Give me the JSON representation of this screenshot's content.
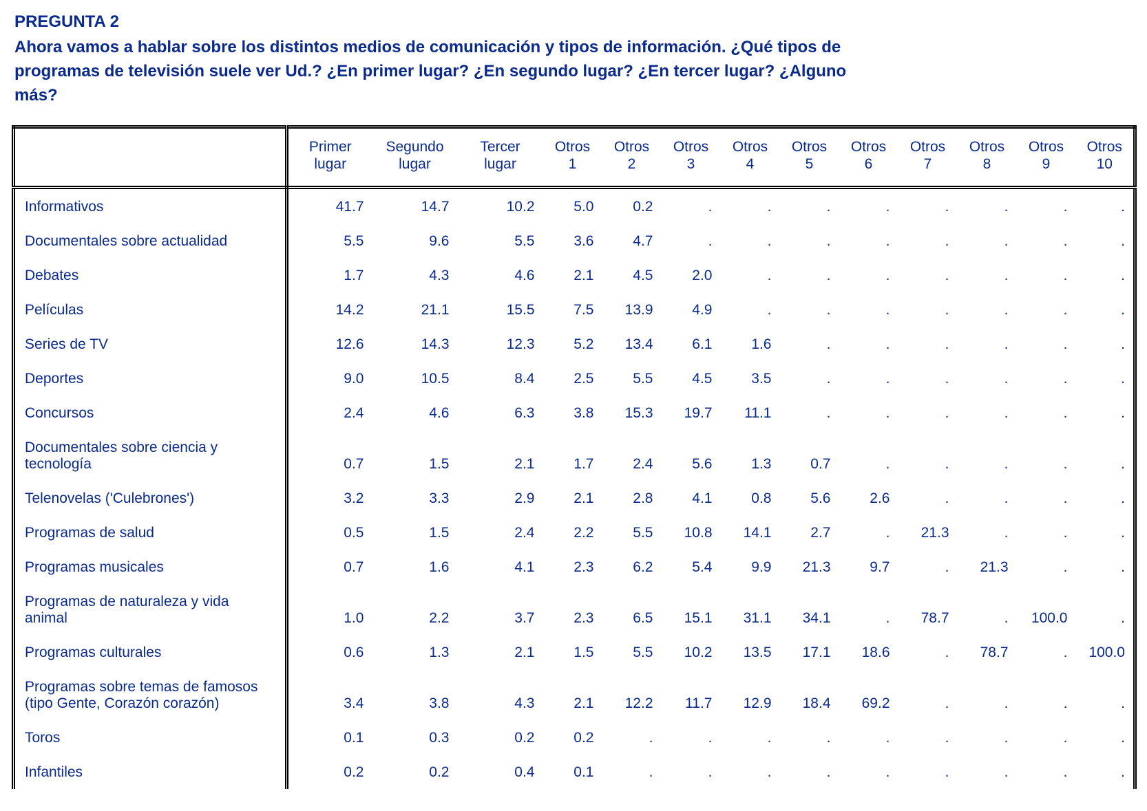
{
  "header": {
    "title": "PREGUNTA 2",
    "question": "Ahora vamos a hablar sobre los distintos medios de comunicación y tipos de información. ¿Qué tipos de programas de televisión suele ver Ud.? ¿En primer lugar? ¿En segundo lugar? ¿En tercer lugar? ¿Alguno más?"
  },
  "table": {
    "columns": [
      [
        "Primer",
        "lugar"
      ],
      [
        "Segundo",
        "lugar"
      ],
      [
        "Tercer",
        "lugar"
      ],
      [
        "Otros",
        "1"
      ],
      [
        "Otros",
        "2"
      ],
      [
        "Otros",
        "3"
      ],
      [
        "Otros",
        "4"
      ],
      [
        "Otros",
        "5"
      ],
      [
        "Otros",
        "6"
      ],
      [
        "Otros",
        "7"
      ],
      [
        "Otros",
        "8"
      ],
      [
        "Otros",
        "9"
      ],
      [
        "Otros",
        "10"
      ]
    ],
    "rows": [
      {
        "label": "Informativos",
        "cells": [
          "41.7",
          "14.7",
          "10.2",
          "5.0",
          "0.2",
          ".",
          ".",
          ".",
          ".",
          ".",
          ".",
          ".",
          "."
        ]
      },
      {
        "label": "Documentales sobre actualidad",
        "cells": [
          "5.5",
          "9.6",
          "5.5",
          "3.6",
          "4.7",
          ".",
          ".",
          ".",
          ".",
          ".",
          ".",
          ".",
          "."
        ]
      },
      {
        "label": "Debates",
        "cells": [
          "1.7",
          "4.3",
          "4.6",
          "2.1",
          "4.5",
          "2.0",
          ".",
          ".",
          ".",
          ".",
          ".",
          ".",
          "."
        ]
      },
      {
        "label": "Películas",
        "cells": [
          "14.2",
          "21.1",
          "15.5",
          "7.5",
          "13.9",
          "4.9",
          ".",
          ".",
          ".",
          ".",
          ".",
          ".",
          "."
        ]
      },
      {
        "label": "Series de TV",
        "cells": [
          "12.6",
          "14.3",
          "12.3",
          "5.2",
          "13.4",
          "6.1",
          "1.6",
          ".",
          ".",
          ".",
          ".",
          ".",
          "."
        ]
      },
      {
        "label": "Deportes",
        "cells": [
          "9.0",
          "10.5",
          "8.4",
          "2.5",
          "5.5",
          "4.5",
          "3.5",
          ".",
          ".",
          ".",
          ".",
          ".",
          "."
        ]
      },
      {
        "label": "Concursos",
        "cells": [
          "2.4",
          "4.6",
          "6.3",
          "3.8",
          "15.3",
          "19.7",
          "11.1",
          ".",
          ".",
          ".",
          ".",
          ".",
          "."
        ]
      },
      {
        "label": "Documentales sobre ciencia y tecnología",
        "cells": [
          "0.7",
          "1.5",
          "2.1",
          "1.7",
          "2.4",
          "5.6",
          "1.3",
          "0.7",
          ".",
          ".",
          ".",
          ".",
          "."
        ]
      },
      {
        "label": "Telenovelas ('Culebrones')",
        "cells": [
          "3.2",
          "3.3",
          "2.9",
          "2.1",
          "2.8",
          "4.1",
          "0.8",
          "5.6",
          "2.6",
          ".",
          ".",
          ".",
          "."
        ]
      },
      {
        "label": "Programas de salud",
        "cells": [
          "0.5",
          "1.5",
          "2.4",
          "2.2",
          "5.5",
          "10.8",
          "14.1",
          "2.7",
          ".",
          "21.3",
          ".",
          ".",
          "."
        ]
      },
      {
        "label": "Programas musicales",
        "cells": [
          "0.7",
          "1.6",
          "4.1",
          "2.3",
          "6.2",
          "5.4",
          "9.9",
          "21.3",
          "9.7",
          ".",
          "21.3",
          ".",
          "."
        ]
      },
      {
        "label": "Programas de naturaleza y vida animal",
        "cells": [
          "1.0",
          "2.2",
          "3.7",
          "2.3",
          "6.5",
          "15.1",
          "31.1",
          "34.1",
          ".",
          "78.7",
          ".",
          "100.0",
          "."
        ]
      },
      {
        "label": "Programas culturales",
        "cells": [
          "0.6",
          "1.3",
          "2.1",
          "1.5",
          "5.5",
          "10.2",
          "13.5",
          "17.1",
          "18.6",
          ".",
          "78.7",
          ".",
          "100.0"
        ]
      },
      {
        "label": "Programas sobre temas de famosos (tipo Gente, Corazón corazón)",
        "cells": [
          "3.4",
          "3.8",
          "4.3",
          "2.1",
          "12.2",
          "11.7",
          "12.9",
          "18.4",
          "69.2",
          ".",
          ".",
          ".",
          "."
        ]
      },
      {
        "label": "Toros",
        "cells": [
          "0.1",
          "0.3",
          "0.2",
          "0.2",
          ".",
          ".",
          ".",
          ".",
          ".",
          ".",
          ".",
          ".",
          "."
        ]
      },
      {
        "label": "Infantiles",
        "cells": [
          "0.2",
          "0.2",
          "0.4",
          "0.1",
          ".",
          ".",
          ".",
          ".",
          ".",
          ".",
          ".",
          ".",
          "."
        ]
      }
    ]
  }
}
